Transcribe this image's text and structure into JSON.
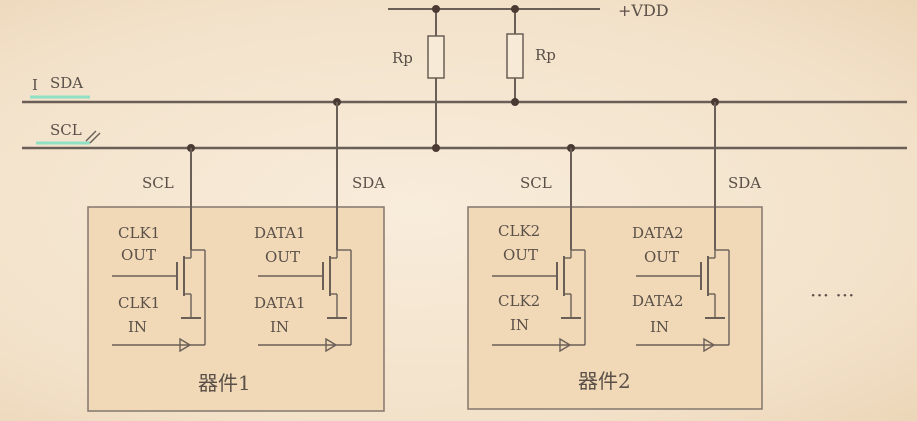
{
  "supply": {
    "label": "+VDD"
  },
  "resistors": [
    {
      "label": "Rp"
    },
    {
      "label": "Rp"
    }
  ],
  "buses": {
    "sda": "SDA",
    "scl": "SCL",
    "sda_prefix": "I"
  },
  "devices": [
    {
      "name": "器件1",
      "scl_tap": "SCL",
      "sda_tap": "SDA",
      "clk_out": [
        "CLK1",
        "OUT"
      ],
      "clk_in": [
        "CLK1",
        "IN"
      ],
      "data_out": [
        "DATA1",
        "OUT"
      ],
      "data_in": [
        "DATA1",
        "IN"
      ]
    },
    {
      "name": "器件2",
      "scl_tap": "SCL",
      "sda_tap": "SDA",
      "clk_out": [
        "CLK2",
        "OUT"
      ],
      "clk_in": [
        "CLK2",
        "IN"
      ],
      "data_out": [
        "DATA2",
        "OUT"
      ],
      "data_in": [
        "DATA2",
        "IN"
      ]
    }
  ],
  "ellipsis": "··· ···"
}
